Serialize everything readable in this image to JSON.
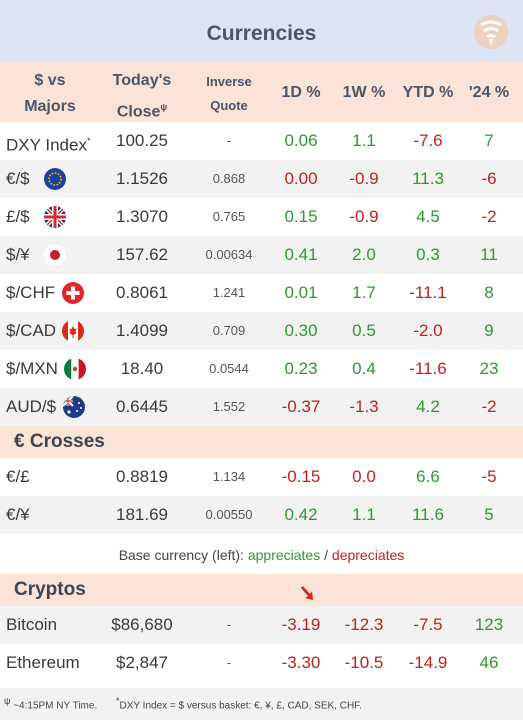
{
  "title": "Currencies",
  "header": {
    "col1_line1": "$ vs",
    "col1_line2": "Majors",
    "col2_line1": "Today's",
    "col2_line2": "Close",
    "col2_mark": "ψ",
    "col3_line1": "Inverse",
    "col3_line2": "Quote",
    "col4": "1D %",
    "col5": "1W %",
    "col6": "YTD %",
    "col7": "'24 %"
  },
  "majors": [
    {
      "name": "DXY Index",
      "mark": "*",
      "close": "100.25",
      "inverse": "-",
      "d1": "0.06",
      "w1": "1.1",
      "ytd": "-7.6",
      "y24": "7",
      "flag": "none"
    },
    {
      "name": "€/$",
      "close": "1.1526",
      "inverse": "0.868",
      "d1": "0.00",
      "w1": "-0.9",
      "ytd": "11.3",
      "y24": "-6",
      "flag": "eu-flag-icon"
    },
    {
      "name": "£/$",
      "close": "1.3070",
      "inverse": "0.765",
      "d1": "0.15",
      "w1": "-0.9",
      "ytd": "4.5",
      "y24": "-2",
      "flag": "uk-flag-icon"
    },
    {
      "name": "$/¥",
      "close": "157.62",
      "inverse": "0.00634",
      "d1": "0.41",
      "w1": "2.0",
      "ytd": "0.3",
      "y24": "11",
      "flag": "japan-flag-icon"
    },
    {
      "name": "$/CHF",
      "close": "0.8061",
      "inverse": "1.241",
      "d1": "0.01",
      "w1": "1.7",
      "ytd": "-11.1",
      "y24": "8",
      "flag": "swiss-flag-icon"
    },
    {
      "name": "$/CAD",
      "close": "1.4099",
      "inverse": "0.709",
      "d1": "0.30",
      "w1": "0.5",
      "ytd": "-2.0",
      "y24": "9",
      "flag": "canada-flag-icon"
    },
    {
      "name": "$/MXN",
      "close": "18.40",
      "inverse": "0.0544",
      "d1": "0.23",
      "w1": "0.4",
      "ytd": "-11.6",
      "y24": "23",
      "flag": "mexico-flag-icon"
    },
    {
      "name": "AUD/$",
      "close": "0.6445",
      "inverse": "1.552",
      "d1": "-0.37",
      "w1": "-1.3",
      "ytd": "4.2",
      "y24": "-2",
      "flag": "australia-flag-icon"
    }
  ],
  "crosses_label": "€ Crosses",
  "crosses": [
    {
      "name": "€/£",
      "close": "0.8819",
      "inverse": "1.134",
      "d1": "-0.15",
      "w1": "0.0",
      "ytd": "6.6",
      "y24": "-5"
    },
    {
      "name": "€/¥",
      "close": "181.69",
      "inverse": "0.00550",
      "d1": "0.42",
      "w1": "1.1",
      "ytd": "11.6",
      "y24": "5"
    }
  ],
  "legend": {
    "prefix": "Base currency (left):",
    "up": "appreciates",
    "sep": "/",
    "down": "depreciates"
  },
  "cryptos_label": "Cryptos",
  "cryptos": [
    {
      "name": "Bitcoin",
      "close": "$86,680",
      "inverse": "-",
      "d1": "-3.19",
      "w1": "-12.3",
      "ytd": "-7.5",
      "y24": "123"
    },
    {
      "name": "Ethereum",
      "close": "$2,847",
      "inverse": "-",
      "d1": "-3.30",
      "w1": "-10.5",
      "ytd": "-14.9",
      "y24": "46"
    }
  ],
  "footnotes": {
    "f1_mark": "ψ",
    "f1": "~4:15PM NY Time.",
    "f2_mark": "*",
    "f2": "DXY Index = $ versus basket: €, ¥, £, CAD, SEK, CHF."
  },
  "colors": {
    "positive": "#2d9a2d",
    "negative": "#c0221c",
    "header_bg": "#fce3d7",
    "title_bg": "#dde4f4"
  }
}
